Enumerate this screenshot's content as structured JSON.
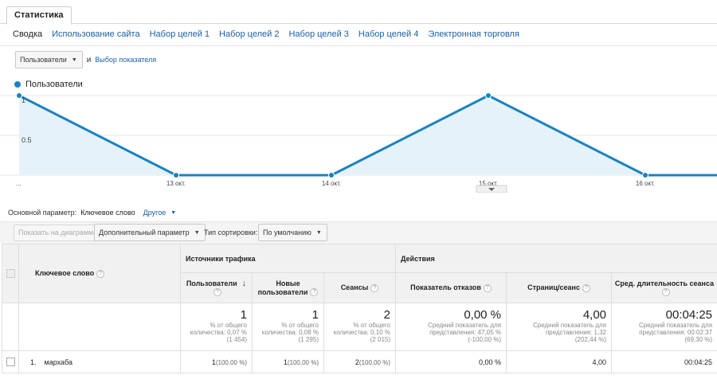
{
  "tab": {
    "label": "Статистика"
  },
  "subnav": [
    {
      "label": "Сводка",
      "active": true
    },
    {
      "label": "Использование сайта"
    },
    {
      "label": "Набор целей 1"
    },
    {
      "label": "Набор целей 2"
    },
    {
      "label": "Набор целей 3"
    },
    {
      "label": "Набор целей 4"
    },
    {
      "label": "Электронная торговля"
    }
  ],
  "metric_selector": {
    "value": "Пользователи",
    "and": "и",
    "choose_link": "Выбор показателя"
  },
  "legend": {
    "label": "Пользователи"
  },
  "chart_data": {
    "type": "line",
    "series": [
      {
        "name": "Пользователи",
        "values": [
          1,
          0,
          0,
          1,
          0,
          0
        ]
      }
    ],
    "x_tick_labels": [
      "...",
      "13 окт.",
      "14 окт.",
      "15 окт.",
      "16 окт."
    ],
    "y_tick_labels": [
      "1",
      "0.5"
    ],
    "ylim": [
      0,
      1
    ],
    "colors": {
      "line": "#1a82c2",
      "fill": "#e6f2fa"
    },
    "grid": true
  },
  "params": {
    "primary_label": "Основной параметр:",
    "primary_value": "Ключевое слово",
    "other_link": "Другое"
  },
  "toolbar": {
    "show_on_chart": "Показать на диаграмме",
    "secondary_param": "Дополнительный параметр",
    "sort_label": "Тип сортировки:",
    "sort_value": "По умолчанию"
  },
  "table": {
    "header": {
      "keyword": "Ключевое слово",
      "traffic_group": "Источники трафика",
      "actions_group": "Действия",
      "users": "Пользователи",
      "new_users_line1": "Новые",
      "new_users_line2": "пользователи",
      "sessions": "Сеансы",
      "bounce_rate": "Показатель отказов",
      "pages_per_session": "Страниц/сеанс",
      "avg_duration": "Сред. длительность сеанса"
    },
    "summary": {
      "users": {
        "value": "1",
        "l1": "% от общего",
        "l2": "количества: 0,07 %",
        "l3": "(1 454)"
      },
      "new_users": {
        "value": "1",
        "l1": "% от общего",
        "l2": "количества: 0,08 %",
        "l3": "(1 295)"
      },
      "sessions": {
        "value": "2",
        "l1": "% от общего",
        "l2": "количества: 0,10 %",
        "l3": "(2 015)"
      },
      "bounce": {
        "value": "0,00 %",
        "l1": "Средний показатель для",
        "l2": "представления: 47,05 %",
        "l3": "(-100,00 %)"
      },
      "pages": {
        "value": "4,00",
        "l1": "Средний показатель для",
        "l2": "представления: 1,32",
        "l3": "(202,44 %)"
      },
      "duration": {
        "value": "00:04:25",
        "l1": "Средний показатель для",
        "l2": "представления: 00:02:37",
        "l3": "(69,30 %)"
      }
    },
    "rows": [
      {
        "index": "1.",
        "keyword": "мархаба",
        "users": "1",
        "users_pct": "(100,00 %)",
        "new_users": "1",
        "new_users_pct": "(100,00 %)",
        "sessions": "2",
        "sessions_pct": "(100,00 %)",
        "bounce": "0,00 %",
        "pages": "4,00",
        "duration": "00:04:25"
      }
    ]
  }
}
